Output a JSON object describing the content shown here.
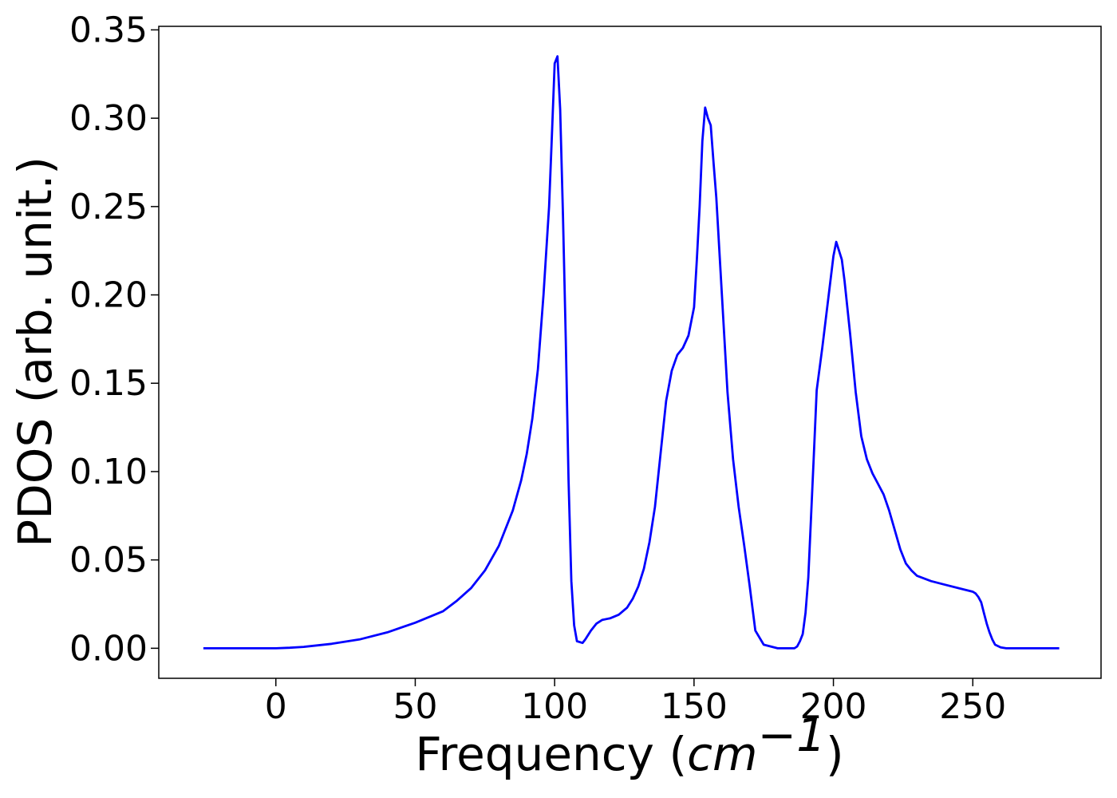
{
  "chart_data": {
    "type": "line",
    "title": "",
    "xlabel_parts": {
      "prefix": "Frequency (",
      "math": "cm",
      "sup": "−1",
      "suffix": ")"
    },
    "ylabel": "PDOS (arb. unit.)",
    "xlim": [
      -42,
      296
    ],
    "ylim": [
      -0.017,
      0.352
    ],
    "xticks": [
      0,
      50,
      100,
      150,
      200,
      250
    ],
    "xtick_labels": [
      "0",
      "50",
      "100",
      "150",
      "200",
      "250"
    ],
    "yticks": [
      0.0,
      0.05,
      0.1,
      0.15,
      0.2,
      0.25,
      0.3,
      0.35
    ],
    "ytick_labels": [
      "0.00",
      "0.05",
      "0.10",
      "0.15",
      "0.20",
      "0.25",
      "0.30",
      "0.35"
    ],
    "grid": false,
    "legend": "none",
    "series": [
      {
        "color": "#0000ff",
        "x": [
          -26,
          0,
          5,
          10,
          20,
          30,
          40,
          50,
          60,
          65,
          70,
          75,
          80,
          85,
          88,
          90,
          92,
          94,
          96,
          98,
          99,
          100,
          101,
          102,
          103,
          104,
          105,
          106,
          107,
          108,
          110,
          111,
          113,
          115,
          117,
          120,
          123,
          126,
          128,
          130,
          132,
          134,
          136,
          138,
          140,
          142,
          144,
          146,
          148,
          150,
          151,
          152,
          153,
          154,
          155,
          156,
          157,
          158,
          160,
          162,
          164,
          166,
          168,
          170,
          172,
          175,
          180,
          185,
          186,
          187,
          188,
          189,
          190,
          191,
          192,
          193,
          194,
          196,
          198,
          200,
          201,
          202,
          203,
          204,
          206,
          208,
          210,
          212,
          214,
          216,
          218,
          220,
          222,
          224,
          226,
          228,
          230,
          235,
          240,
          245,
          250,
          251,
          252,
          253,
          254,
          255,
          256,
          257,
          258,
          260,
          262,
          265,
          270,
          280,
          281
        ],
        "y": [
          0.0,
          0.0,
          0.0003,
          0.0008,
          0.0025,
          0.005,
          0.009,
          0.0145,
          0.021,
          0.027,
          0.034,
          0.044,
          0.058,
          0.078,
          0.095,
          0.11,
          0.13,
          0.158,
          0.2,
          0.25,
          0.29,
          0.331,
          0.335,
          0.305,
          0.245,
          0.175,
          0.095,
          0.038,
          0.013,
          0.004,
          0.003,
          0.005,
          0.01,
          0.014,
          0.016,
          0.017,
          0.019,
          0.023,
          0.028,
          0.035,
          0.045,
          0.06,
          0.08,
          0.11,
          0.14,
          0.157,
          0.166,
          0.17,
          0.177,
          0.193,
          0.22,
          0.25,
          0.287,
          0.306,
          0.3,
          0.296,
          0.275,
          0.255,
          0.2,
          0.145,
          0.107,
          0.08,
          0.058,
          0.035,
          0.01,
          0.002,
          0.0,
          0.0,
          0.0,
          0.001,
          0.004,
          0.008,
          0.02,
          0.04,
          0.075,
          0.11,
          0.146,
          0.17,
          0.196,
          0.222,
          0.23,
          0.225,
          0.22,
          0.208,
          0.178,
          0.145,
          0.12,
          0.107,
          0.099,
          0.093,
          0.087,
          0.078,
          0.067,
          0.056,
          0.048,
          0.044,
          0.041,
          0.038,
          0.036,
          0.034,
          0.032,
          0.031,
          0.029,
          0.026,
          0.02,
          0.014,
          0.009,
          0.005,
          0.002,
          0.0005,
          0.0,
          0.0,
          0.0,
          0.0,
          0.0
        ]
      }
    ]
  }
}
